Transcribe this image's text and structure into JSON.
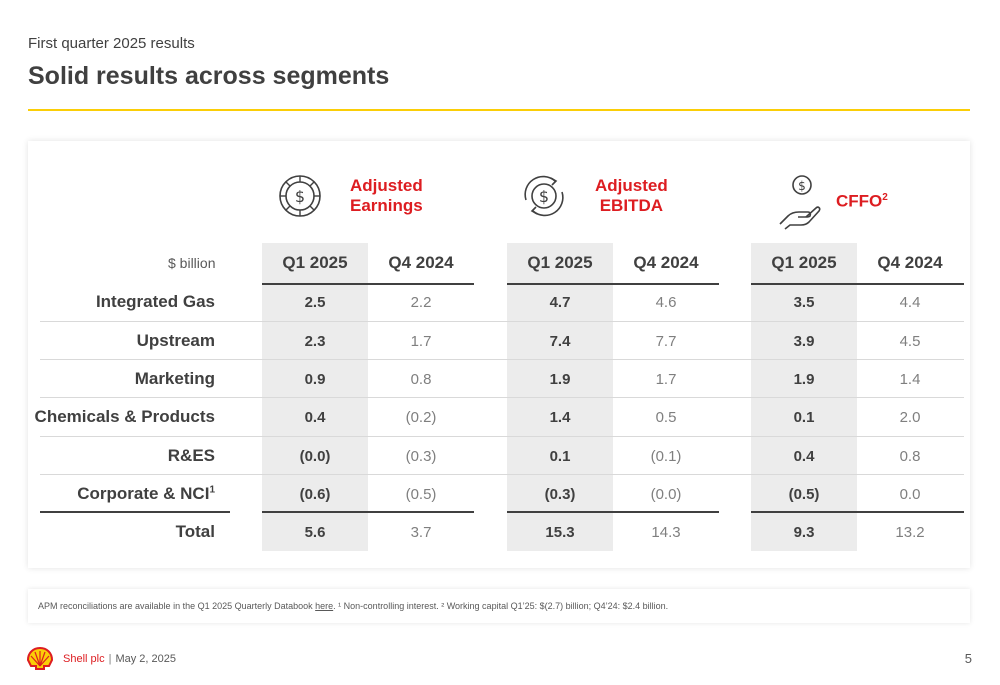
{
  "header": {
    "subtitle": "First quarter 2025 results",
    "title": "Solid results across segments"
  },
  "table": {
    "unit_label": "$ billion",
    "categories": [
      {
        "line1": "Adjusted",
        "line2": "Earnings",
        "icon": "dollar-coin-icon"
      },
      {
        "line1": "Adjusted",
        "line2": "EBITDA",
        "icon": "dollar-cycle-icon"
      },
      {
        "line1": "CFFO",
        "sup": "2",
        "icon": "hand-coin-icon"
      }
    ],
    "period_headers": [
      "Q1 2025",
      "Q4 2024"
    ],
    "rows": [
      {
        "label": "Integrated Gas",
        "values": [
          "2.5",
          "2.2",
          "4.7",
          "4.6",
          "3.5",
          "4.4"
        ]
      },
      {
        "label": "Upstream",
        "values": [
          "2.3",
          "1.7",
          "7.4",
          "7.7",
          "3.9",
          "4.5"
        ]
      },
      {
        "label": "Marketing",
        "values": [
          "0.9",
          "0.8",
          "1.9",
          "1.7",
          "1.9",
          "1.4"
        ]
      },
      {
        "label": "Chemicals & Products",
        "values": [
          "0.4",
          "(0.2)",
          "1.4",
          "0.5",
          "0.1",
          "2.0"
        ]
      },
      {
        "label": "R&ES",
        "values": [
          "(0.0)",
          "(0.3)",
          "0.1",
          "(0.1)",
          "0.4",
          "0.8"
        ]
      },
      {
        "label": "Corporate & NCI",
        "sup": "1",
        "values": [
          "(0.6)",
          "(0.5)",
          "(0.3)",
          "(0.0)",
          "(0.5)",
          "0.0"
        ]
      },
      {
        "label": "Total",
        "values": [
          "5.6",
          "3.7",
          "15.3",
          "14.3",
          "9.3",
          "13.2"
        ]
      }
    ]
  },
  "footnote": {
    "prefix": "APM reconciliations are available in the Q1 2025 Quarterly Databook ",
    "link": "here",
    "suffix": ". ¹ Non-controlling interest. ² Working capital Q1’25: $(2.7) billion; Q4’24: $2.4 billion."
  },
  "footer": {
    "company": "Shell plc",
    "separator": "|",
    "date": "May 2, 2025",
    "page": "5"
  },
  "colors": {
    "shell_red": "#dd1d21",
    "shell_yellow": "#fbce07",
    "text": "#404040",
    "highlight": "#ececec"
  }
}
